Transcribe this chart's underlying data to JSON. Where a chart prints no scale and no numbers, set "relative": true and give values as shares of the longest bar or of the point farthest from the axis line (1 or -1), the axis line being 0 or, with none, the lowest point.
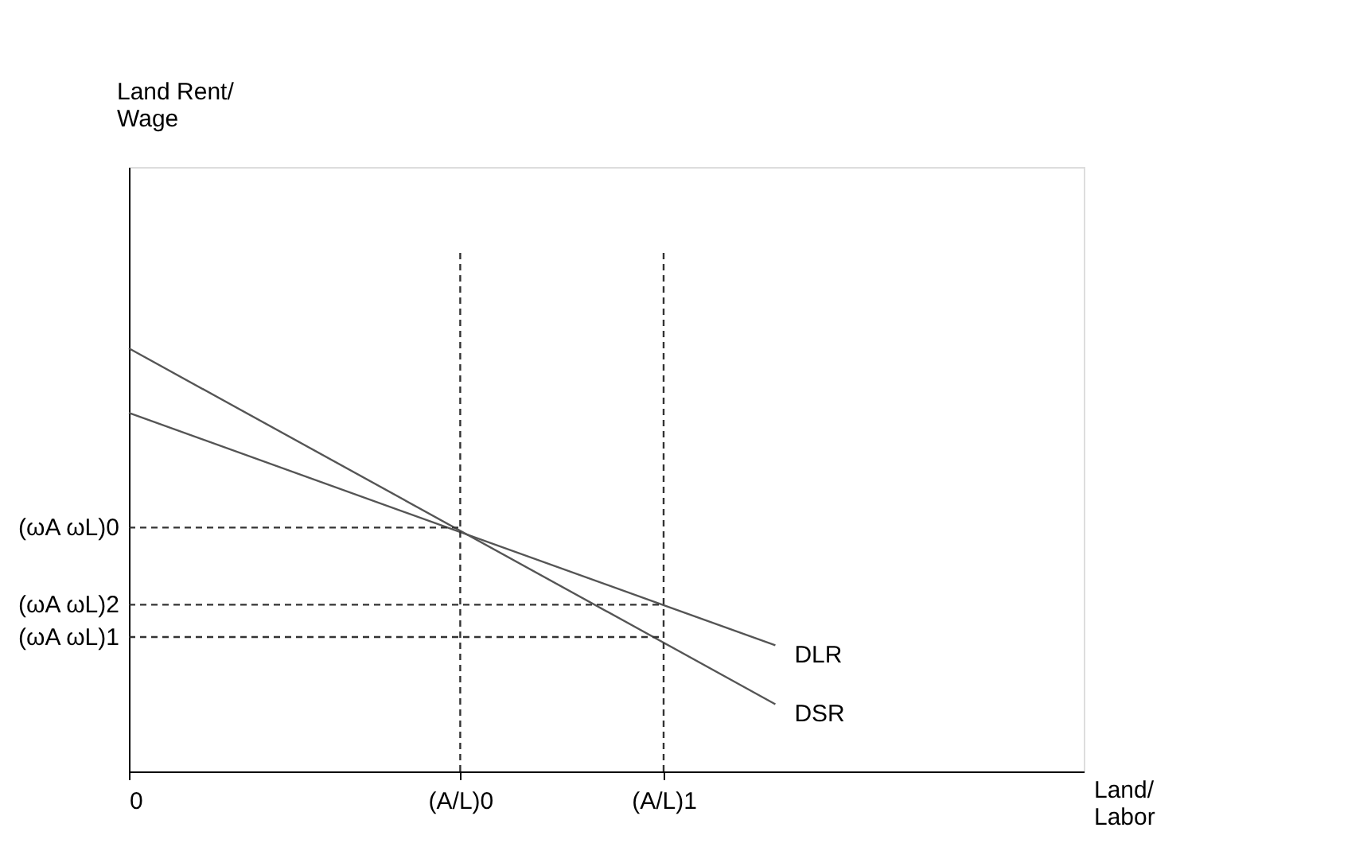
{
  "chart_data": {
    "type": "line",
    "relative": true,
    "xlabel": "Land/\nLabor",
    "ylabel": "Land Rent/\nWage",
    "xlim": [
      0,
      1
    ],
    "xticks": [
      {
        "value": 0,
        "label": "0"
      },
      {
        "value": 0.347,
        "label": "(A/L)0"
      },
      {
        "value": 0.56,
        "label": "(A/L)1"
      }
    ],
    "grid": false,
    "marker": "none",
    "series": [
      {
        "name": "DLR",
        "color": "#555555",
        "line_style": "solid",
        "x": [
          0,
          0.677
        ],
        "values": [
          0.688,
          0.242
        ]
      },
      {
        "name": "DSR",
        "color": "#555555",
        "line_style": "solid",
        "x": [
          0,
          0.677
        ],
        "values": [
          0.812,
          0.129
        ]
      },
      {
        "color": "#333333",
        "line_style": "dashed",
        "x": [
          0.347,
          0.347
        ],
        "values": [
          0,
          1
        ]
      },
      {
        "color": "#333333",
        "line_style": "dashed",
        "x": [
          0.56,
          0.56
        ],
        "values": [
          0,
          1
        ]
      },
      {
        "name": "(ωA ωL)0",
        "color": "#333333",
        "line_style": "dashed",
        "x": [
          0,
          0.347
        ],
        "values": [
          0.468,
          0.468
        ]
      },
      {
        "name": "(ωA ωL)2",
        "color": "#333333",
        "line_style": "dashed",
        "x": [
          0,
          0.56
        ],
        "values": [
          0.32,
          0.32
        ]
      },
      {
        "name": "(ωA ωL)1",
        "color": "#333333",
        "line_style": "dashed",
        "x": [
          0,
          0.56
        ],
        "values": [
          0.258,
          0.258
        ]
      }
    ]
  }
}
